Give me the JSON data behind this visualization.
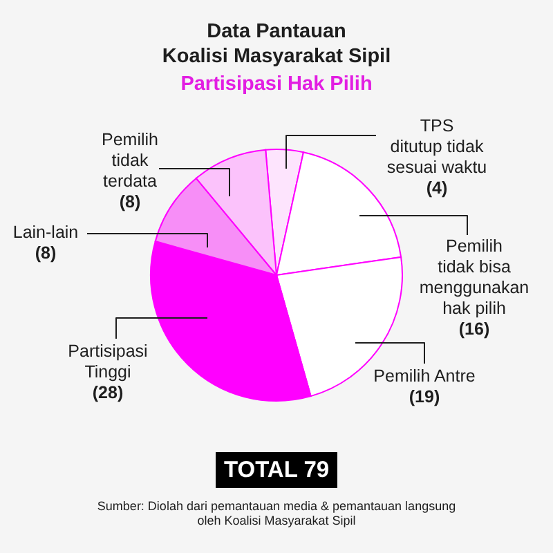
{
  "chart_data": {
    "type": "pie",
    "title": "Data Pantauan Koalisi Masyarakat Sipil",
    "subtitle": "Partisipasi Hak Pilih",
    "categories": [
      "TPS ditutup tidak sesuai waktu",
      "Pemilih tidak bisa menggunakan hak pilih",
      "Pemilih Antre",
      "Partisipasi Tinggi",
      "Lain-lain",
      "Pemilih tidak terdata"
    ],
    "values": [
      4,
      16,
      19,
      28,
      8,
      8
    ],
    "colors": [
      "#fde4fd",
      "#ffffff",
      "#ffffff",
      "#ff00ff",
      "#f78ef7",
      "#fbc2fb"
    ],
    "value_labels": [
      "(4)",
      "(16)",
      "(19)",
      "(28)",
      "(8)",
      "(8)"
    ],
    "annotations": [
      "TOTAL 79",
      "Sumber: Diolah dari pemantauan media & pemantauan langsung oleh Koalisi Masyarakat Sipil"
    ]
  }
}
